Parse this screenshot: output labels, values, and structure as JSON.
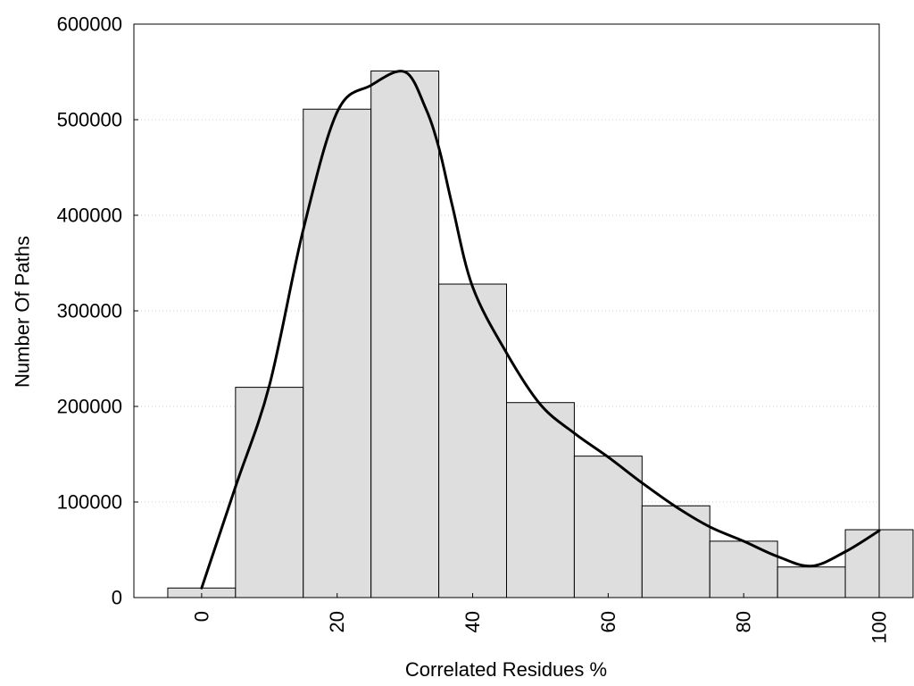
{
  "chart_data": {
    "type": "bar",
    "xlabel": "Correlated Residues %",
    "ylabel": "Number Of Paths",
    "xlim": [
      -10,
      100
    ],
    "ylim": [
      0,
      600000
    ],
    "xticks": [
      0,
      20,
      40,
      60,
      80,
      100
    ],
    "xtick_labels": [
      "0",
      "20",
      "40",
      "60",
      "80",
      "100"
    ],
    "yticks": [
      0,
      100000,
      200000,
      300000,
      400000,
      500000,
      600000
    ],
    "ytick_labels": [
      "0",
      "100000",
      "200000",
      "300000",
      "400000",
      "500000",
      "600000"
    ],
    "grid": "y",
    "bin_width": 10,
    "series": [
      {
        "type": "bar",
        "x": [
          0,
          10,
          20,
          30,
          40,
          50,
          60,
          70,
          80,
          90,
          100
        ],
        "values": [
          10000,
          220000,
          511000,
          551000,
          328000,
          204000,
          148000,
          96000,
          59000,
          32000,
          71000
        ],
        "color": "#dedede",
        "edgecolor": "#000000"
      },
      {
        "type": "line",
        "smooth": true,
        "x": [
          0,
          5,
          10,
          15,
          20,
          25,
          30,
          33,
          35,
          37,
          40,
          45,
          50,
          55,
          60,
          65,
          70,
          75,
          80,
          85,
          90,
          95,
          100
        ],
        "y": [
          10000,
          116000,
          222000,
          385000,
          508000,
          536000,
          550000,
          513000,
          471000,
          410000,
          325000,
          256000,
          202000,
          172000,
          147000,
          120000,
          95000,
          74000,
          59000,
          43000,
          33000,
          48000,
          70000
        ],
        "color": "#000000"
      }
    ]
  }
}
